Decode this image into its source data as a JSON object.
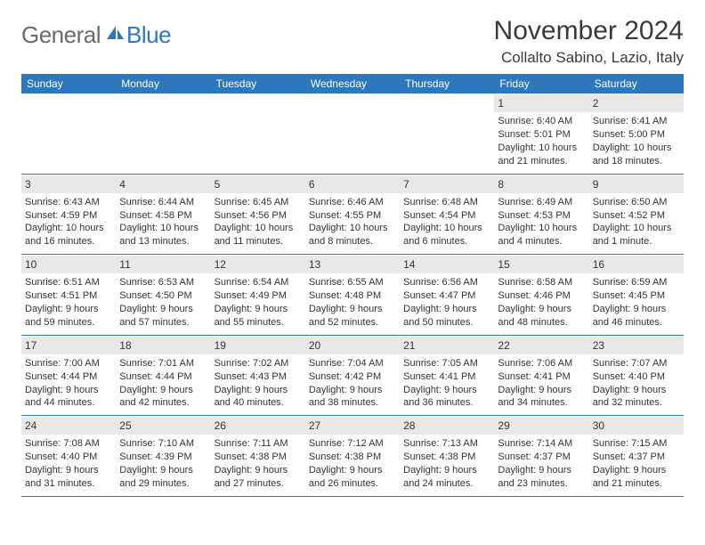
{
  "logo": {
    "general": "General",
    "blue": "Blue"
  },
  "title": "November 2024",
  "location": "Collalto Sabino, Lazio, Italy",
  "colors": {
    "header_bg": "#2d77bd",
    "header_text": "#ffffff",
    "daynum_bg": "#e8e8e8",
    "text": "#333333",
    "logo_gray": "#6a6a6a",
    "logo_blue": "#2d77bd"
  },
  "weekdays": [
    "Sunday",
    "Monday",
    "Tuesday",
    "Wednesday",
    "Thursday",
    "Friday",
    "Saturday"
  ],
  "weeks": [
    [
      {
        "empty": true
      },
      {
        "empty": true
      },
      {
        "empty": true
      },
      {
        "empty": true
      },
      {
        "empty": true
      },
      {
        "n": "1",
        "sunrise": "Sunrise: 6:40 AM",
        "sunset": "Sunset: 5:01 PM",
        "daylight": "Daylight: 10 hours and 21 minutes."
      },
      {
        "n": "2",
        "sunrise": "Sunrise: 6:41 AM",
        "sunset": "Sunset: 5:00 PM",
        "daylight": "Daylight: 10 hours and 18 minutes."
      }
    ],
    [
      {
        "n": "3",
        "sunrise": "Sunrise: 6:43 AM",
        "sunset": "Sunset: 4:59 PM",
        "daylight": "Daylight: 10 hours and 16 minutes."
      },
      {
        "n": "4",
        "sunrise": "Sunrise: 6:44 AM",
        "sunset": "Sunset: 4:58 PM",
        "daylight": "Daylight: 10 hours and 13 minutes."
      },
      {
        "n": "5",
        "sunrise": "Sunrise: 6:45 AM",
        "sunset": "Sunset: 4:56 PM",
        "daylight": "Daylight: 10 hours and 11 minutes."
      },
      {
        "n": "6",
        "sunrise": "Sunrise: 6:46 AM",
        "sunset": "Sunset: 4:55 PM",
        "daylight": "Daylight: 10 hours and 8 minutes."
      },
      {
        "n": "7",
        "sunrise": "Sunrise: 6:48 AM",
        "sunset": "Sunset: 4:54 PM",
        "daylight": "Daylight: 10 hours and 6 minutes."
      },
      {
        "n": "8",
        "sunrise": "Sunrise: 6:49 AM",
        "sunset": "Sunset: 4:53 PM",
        "daylight": "Daylight: 10 hours and 4 minutes."
      },
      {
        "n": "9",
        "sunrise": "Sunrise: 6:50 AM",
        "sunset": "Sunset: 4:52 PM",
        "daylight": "Daylight: 10 hours and 1 minute."
      }
    ],
    [
      {
        "n": "10",
        "sunrise": "Sunrise: 6:51 AM",
        "sunset": "Sunset: 4:51 PM",
        "daylight": "Daylight: 9 hours and 59 minutes."
      },
      {
        "n": "11",
        "sunrise": "Sunrise: 6:53 AM",
        "sunset": "Sunset: 4:50 PM",
        "daylight": "Daylight: 9 hours and 57 minutes."
      },
      {
        "n": "12",
        "sunrise": "Sunrise: 6:54 AM",
        "sunset": "Sunset: 4:49 PM",
        "daylight": "Daylight: 9 hours and 55 minutes."
      },
      {
        "n": "13",
        "sunrise": "Sunrise: 6:55 AM",
        "sunset": "Sunset: 4:48 PM",
        "daylight": "Daylight: 9 hours and 52 minutes."
      },
      {
        "n": "14",
        "sunrise": "Sunrise: 6:56 AM",
        "sunset": "Sunset: 4:47 PM",
        "daylight": "Daylight: 9 hours and 50 minutes."
      },
      {
        "n": "15",
        "sunrise": "Sunrise: 6:58 AM",
        "sunset": "Sunset: 4:46 PM",
        "daylight": "Daylight: 9 hours and 48 minutes."
      },
      {
        "n": "16",
        "sunrise": "Sunrise: 6:59 AM",
        "sunset": "Sunset: 4:45 PM",
        "daylight": "Daylight: 9 hours and 46 minutes."
      }
    ],
    [
      {
        "n": "17",
        "sunrise": "Sunrise: 7:00 AM",
        "sunset": "Sunset: 4:44 PM",
        "daylight": "Daylight: 9 hours and 44 minutes."
      },
      {
        "n": "18",
        "sunrise": "Sunrise: 7:01 AM",
        "sunset": "Sunset: 4:44 PM",
        "daylight": "Daylight: 9 hours and 42 minutes."
      },
      {
        "n": "19",
        "sunrise": "Sunrise: 7:02 AM",
        "sunset": "Sunset: 4:43 PM",
        "daylight": "Daylight: 9 hours and 40 minutes."
      },
      {
        "n": "20",
        "sunrise": "Sunrise: 7:04 AM",
        "sunset": "Sunset: 4:42 PM",
        "daylight": "Daylight: 9 hours and 38 minutes."
      },
      {
        "n": "21",
        "sunrise": "Sunrise: 7:05 AM",
        "sunset": "Sunset: 4:41 PM",
        "daylight": "Daylight: 9 hours and 36 minutes."
      },
      {
        "n": "22",
        "sunrise": "Sunrise: 7:06 AM",
        "sunset": "Sunset: 4:41 PM",
        "daylight": "Daylight: 9 hours and 34 minutes."
      },
      {
        "n": "23",
        "sunrise": "Sunrise: 7:07 AM",
        "sunset": "Sunset: 4:40 PM",
        "daylight": "Daylight: 9 hours and 32 minutes."
      }
    ],
    [
      {
        "n": "24",
        "sunrise": "Sunrise: 7:08 AM",
        "sunset": "Sunset: 4:40 PM",
        "daylight": "Daylight: 9 hours and 31 minutes."
      },
      {
        "n": "25",
        "sunrise": "Sunrise: 7:10 AM",
        "sunset": "Sunset: 4:39 PM",
        "daylight": "Daylight: 9 hours and 29 minutes."
      },
      {
        "n": "26",
        "sunrise": "Sunrise: 7:11 AM",
        "sunset": "Sunset: 4:38 PM",
        "daylight": "Daylight: 9 hours and 27 minutes."
      },
      {
        "n": "27",
        "sunrise": "Sunrise: 7:12 AM",
        "sunset": "Sunset: 4:38 PM",
        "daylight": "Daylight: 9 hours and 26 minutes."
      },
      {
        "n": "28",
        "sunrise": "Sunrise: 7:13 AM",
        "sunset": "Sunset: 4:38 PM",
        "daylight": "Daylight: 9 hours and 24 minutes."
      },
      {
        "n": "29",
        "sunrise": "Sunrise: 7:14 AM",
        "sunset": "Sunset: 4:37 PM",
        "daylight": "Daylight: 9 hours and 23 minutes."
      },
      {
        "n": "30",
        "sunrise": "Sunrise: 7:15 AM",
        "sunset": "Sunset: 4:37 PM",
        "daylight": "Daylight: 9 hours and 21 minutes."
      }
    ]
  ]
}
